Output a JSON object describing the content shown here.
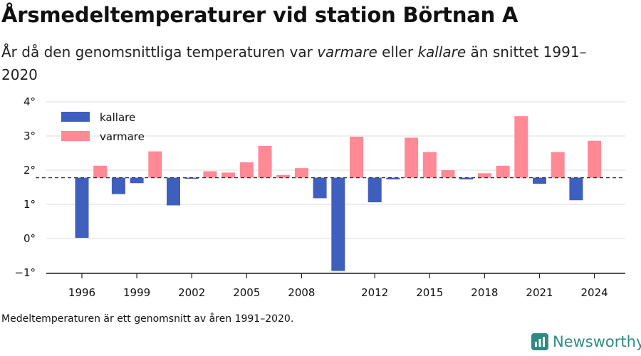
{
  "header": {
    "title": "Årsmedeltemperaturer vid station Börtnan A",
    "subtitle_part1": "År då den genomsnittliga temperaturen var ",
    "subtitle_warm": "varmare",
    "subtitle_part2": " eller ",
    "subtitle_cold": "kallare",
    "subtitle_part3": " än snittet 1991–2020"
  },
  "footer": {
    "note": "Medeltemperaturen är ett genomsnitt av åren 1991–2020.",
    "brand": "Newsworthy",
    "brand_icon": "bar-chart-logo-icon"
  },
  "colors": {
    "kallare": "#3f5fbf",
    "varmare": "#ff8a96",
    "brand": "#2f8a82",
    "grid": "#dddddd",
    "reference_line": "#333333"
  },
  "chart_data": {
    "type": "bar",
    "title": "Årsmedeltemperaturer vid station Börtnan A",
    "xlabel": "",
    "ylabel": "",
    "baseline": 1.78,
    "ylim": [
      -1.1,
      4.1
    ],
    "y_ticks": [
      {
        "value": 4,
        "label": "4°"
      },
      {
        "value": 3,
        "label": "3°"
      },
      {
        "value": 2,
        "label": "2°"
      },
      {
        "value": 1,
        "label": "1°"
      },
      {
        "value": 0,
        "label": "0°"
      },
      {
        "value": -1,
        "label": "−1°"
      }
    ],
    "x_tick_labels": [
      "1996",
      "1999",
      "2002",
      "2005",
      "2008",
      "2012",
      "2015",
      "2018",
      "2021",
      "2024"
    ],
    "legend": {
      "position": "top-left",
      "entries": [
        {
          "key": "kallare",
          "label": "kallare"
        },
        {
          "key": "varmare",
          "label": "varmare"
        }
      ]
    },
    "grid": true,
    "years": [
      1996,
      1997,
      1998,
      1999,
      2000,
      2001,
      2002,
      2003,
      2004,
      2005,
      2006,
      2007,
      2008,
      2009,
      2010,
      2011,
      2012,
      2013,
      2014,
      2015,
      2016,
      2017,
      2018,
      2019,
      2020,
      2021,
      2022,
      2023,
      2024
    ],
    "values": [
      0.02,
      2.13,
      1.3,
      1.62,
      2.55,
      0.97,
      1.75,
      1.97,
      1.93,
      2.23,
      2.71,
      1.86,
      2.06,
      1.18,
      -0.95,
      2.98,
      1.06,
      1.73,
      2.95,
      2.53,
      2.0,
      1.73,
      1.91,
      2.13,
      3.58,
      1.6,
      2.53,
      1.12,
      2.86
    ]
  }
}
